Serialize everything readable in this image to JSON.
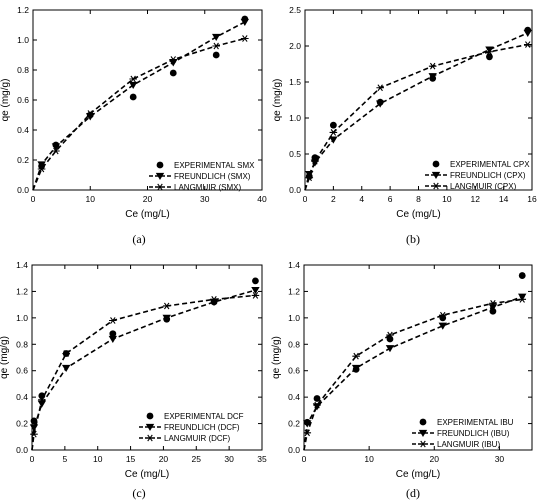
{
  "colors": {
    "ink": "#000000",
    "background": "#ffffff"
  },
  "chart_data": [
    {
      "type": "scatter",
      "panel_label": "(a)",
      "xlabel": "Ce (mg/L)",
      "ylabel": "qe (mg/g)",
      "xlim": [
        0,
        40
      ],
      "ylim": [
        0,
        1.2
      ],
      "xticks": [
        "0",
        "10",
        "20",
        "30",
        "40"
      ],
      "yticks": [
        "0.0",
        "0.2",
        "0.4",
        "0.6",
        "0.8",
        "1.0",
        "1.2"
      ],
      "legend_position": "bottom-right",
      "series": [
        {
          "name": "EXPERIMENTAL SMX",
          "kind": "points",
          "marker": "circle",
          "x": [
            1.5,
            4.0,
            10.0,
            17.5,
            24.5,
            32.0,
            37.0
          ],
          "y": [
            0.16,
            0.3,
            0.5,
            0.62,
            0.78,
            0.9,
            1.14
          ]
        },
        {
          "name": "FREUNDLICH (SMX)",
          "kind": "fit",
          "marker": "triangle-down",
          "x": [
            0,
            1.5,
            4.0,
            10.0,
            17.5,
            24.5,
            32.0,
            37.0
          ],
          "y": [
            0.0,
            0.17,
            0.29,
            0.49,
            0.7,
            0.85,
            1.02,
            1.12
          ]
        },
        {
          "name": "LANGMUIR (SMX)",
          "kind": "fit",
          "marker": "asterisk",
          "x": [
            0,
            1.5,
            4.0,
            10.0,
            17.5,
            24.5,
            32.0,
            37.0
          ],
          "y": [
            0.0,
            0.14,
            0.26,
            0.51,
            0.74,
            0.87,
            0.96,
            1.01
          ]
        }
      ]
    },
    {
      "type": "scatter",
      "panel_label": "(b)",
      "xlabel": "Ce (mg/L)",
      "ylabel": "qe (mg/g)",
      "xlim": [
        0,
        16
      ],
      "ylim": [
        0,
        2.5
      ],
      "xticks": [
        "0",
        "2",
        "4",
        "6",
        "8",
        "10",
        "12",
        "14",
        "16"
      ],
      "yticks": [
        "0.0",
        "0.5",
        "1.0",
        "1.5",
        "2.0",
        "2.5"
      ],
      "legend_position": "bottom-right",
      "series": [
        {
          "name": "EXPERIMENTAL CPX",
          "kind": "points",
          "marker": "circle",
          "x": [
            0.3,
            0.7,
            2.0,
            5.3,
            9.0,
            13.0,
            15.7
          ],
          "y": [
            0.19,
            0.45,
            0.9,
            1.22,
            1.55,
            1.85,
            2.22
          ]
        },
        {
          "name": "FREUNDLICH (CPX)",
          "kind": "fit",
          "marker": "triangle-down",
          "x": [
            0,
            0.3,
            0.7,
            2.0,
            5.3,
            9.0,
            13.0,
            15.7
          ],
          "y": [
            0.0,
            0.22,
            0.38,
            0.7,
            1.2,
            1.58,
            1.95,
            2.18
          ]
        },
        {
          "name": "LANGMUIR (CPX)",
          "kind": "fit",
          "marker": "asterisk",
          "x": [
            0,
            0.3,
            0.7,
            2.0,
            5.3,
            9.0,
            13.0,
            15.7
          ],
          "y": [
            0.0,
            0.17,
            0.4,
            0.8,
            1.42,
            1.72,
            1.92,
            2.02
          ]
        }
      ]
    },
    {
      "type": "scatter",
      "panel_label": "(c)",
      "xlabel": "Ce (mg/L)",
      "ylabel": "qe (mg/g)",
      "xlim": [
        0,
        35
      ],
      "ylim": [
        0,
        1.4
      ],
      "xticks": [
        "0",
        "5",
        "10",
        "15",
        "20",
        "25",
        "30",
        "35"
      ],
      "yticks": [
        "0.0",
        "0.2",
        "0.4",
        "0.6",
        "0.8",
        "1.0",
        "1.2",
        "1.4"
      ],
      "legend_position": "bottom-right",
      "series": [
        {
          "name": "EXPERIMENTAL DCF",
          "kind": "points",
          "marker": "circle",
          "x": [
            0.3,
            1.5,
            5.2,
            12.3,
            20.5,
            27.7,
            34.0
          ],
          "y": [
            0.22,
            0.41,
            0.73,
            0.88,
            0.99,
            1.12,
            1.28
          ]
        },
        {
          "name": "FREUNDLICH (DCF)",
          "kind": "fit",
          "marker": "triangle-down",
          "x": [
            0,
            0.3,
            1.5,
            5.2,
            12.3,
            20.5,
            27.7,
            34.0
          ],
          "y": [
            0.0,
            0.17,
            0.35,
            0.62,
            0.84,
            1.0,
            1.12,
            1.21
          ]
        },
        {
          "name": "LANGMUIR (DCF)",
          "kind": "fit",
          "marker": "asterisk",
          "x": [
            0,
            0.3,
            1.5,
            5.2,
            12.3,
            20.5,
            27.7,
            34.0
          ],
          "y": [
            0.0,
            0.12,
            0.38,
            0.73,
            0.98,
            1.09,
            1.14,
            1.17
          ]
        }
      ]
    },
    {
      "type": "scatter",
      "panel_label": "(d)",
      "xlabel": "Ce (mg/L)",
      "ylabel": "qe (mg/g)",
      "xlim": [
        0,
        35
      ],
      "ylim": [
        0,
        1.4
      ],
      "xticks": [
        "0",
        "10",
        "20",
        "30"
      ],
      "yticks": [
        "0.0",
        "0.2",
        "0.4",
        "0.6",
        "0.8",
        "1.0",
        "1.2",
        "1.4"
      ],
      "legend_position": "bottom-right",
      "series": [
        {
          "name": "EXPERIMENTAL IBU",
          "kind": "points",
          "marker": "circle",
          "x": [
            0.5,
            2.0,
            8.0,
            13.2,
            21.3,
            29.0,
            33.5
          ],
          "y": [
            0.21,
            0.39,
            0.61,
            0.84,
            1.0,
            1.05,
            1.32
          ]
        },
        {
          "name": "FREUNDLICH (IBU)",
          "kind": "fit",
          "marker": "triangle-down",
          "x": [
            0,
            0.5,
            2.0,
            8.0,
            13.2,
            21.3,
            29.0,
            33.5
          ],
          "y": [
            0.0,
            0.2,
            0.33,
            0.62,
            0.77,
            0.94,
            1.08,
            1.16
          ]
        },
        {
          "name": "LANGMUIR (IBU)",
          "kind": "fit",
          "marker": "asterisk",
          "x": [
            0,
            0.5,
            2.0,
            8.0,
            13.2,
            21.3,
            29.0,
            33.5
          ],
          "y": [
            0.0,
            0.13,
            0.34,
            0.71,
            0.87,
            1.02,
            1.11,
            1.14
          ]
        }
      ]
    }
  ]
}
